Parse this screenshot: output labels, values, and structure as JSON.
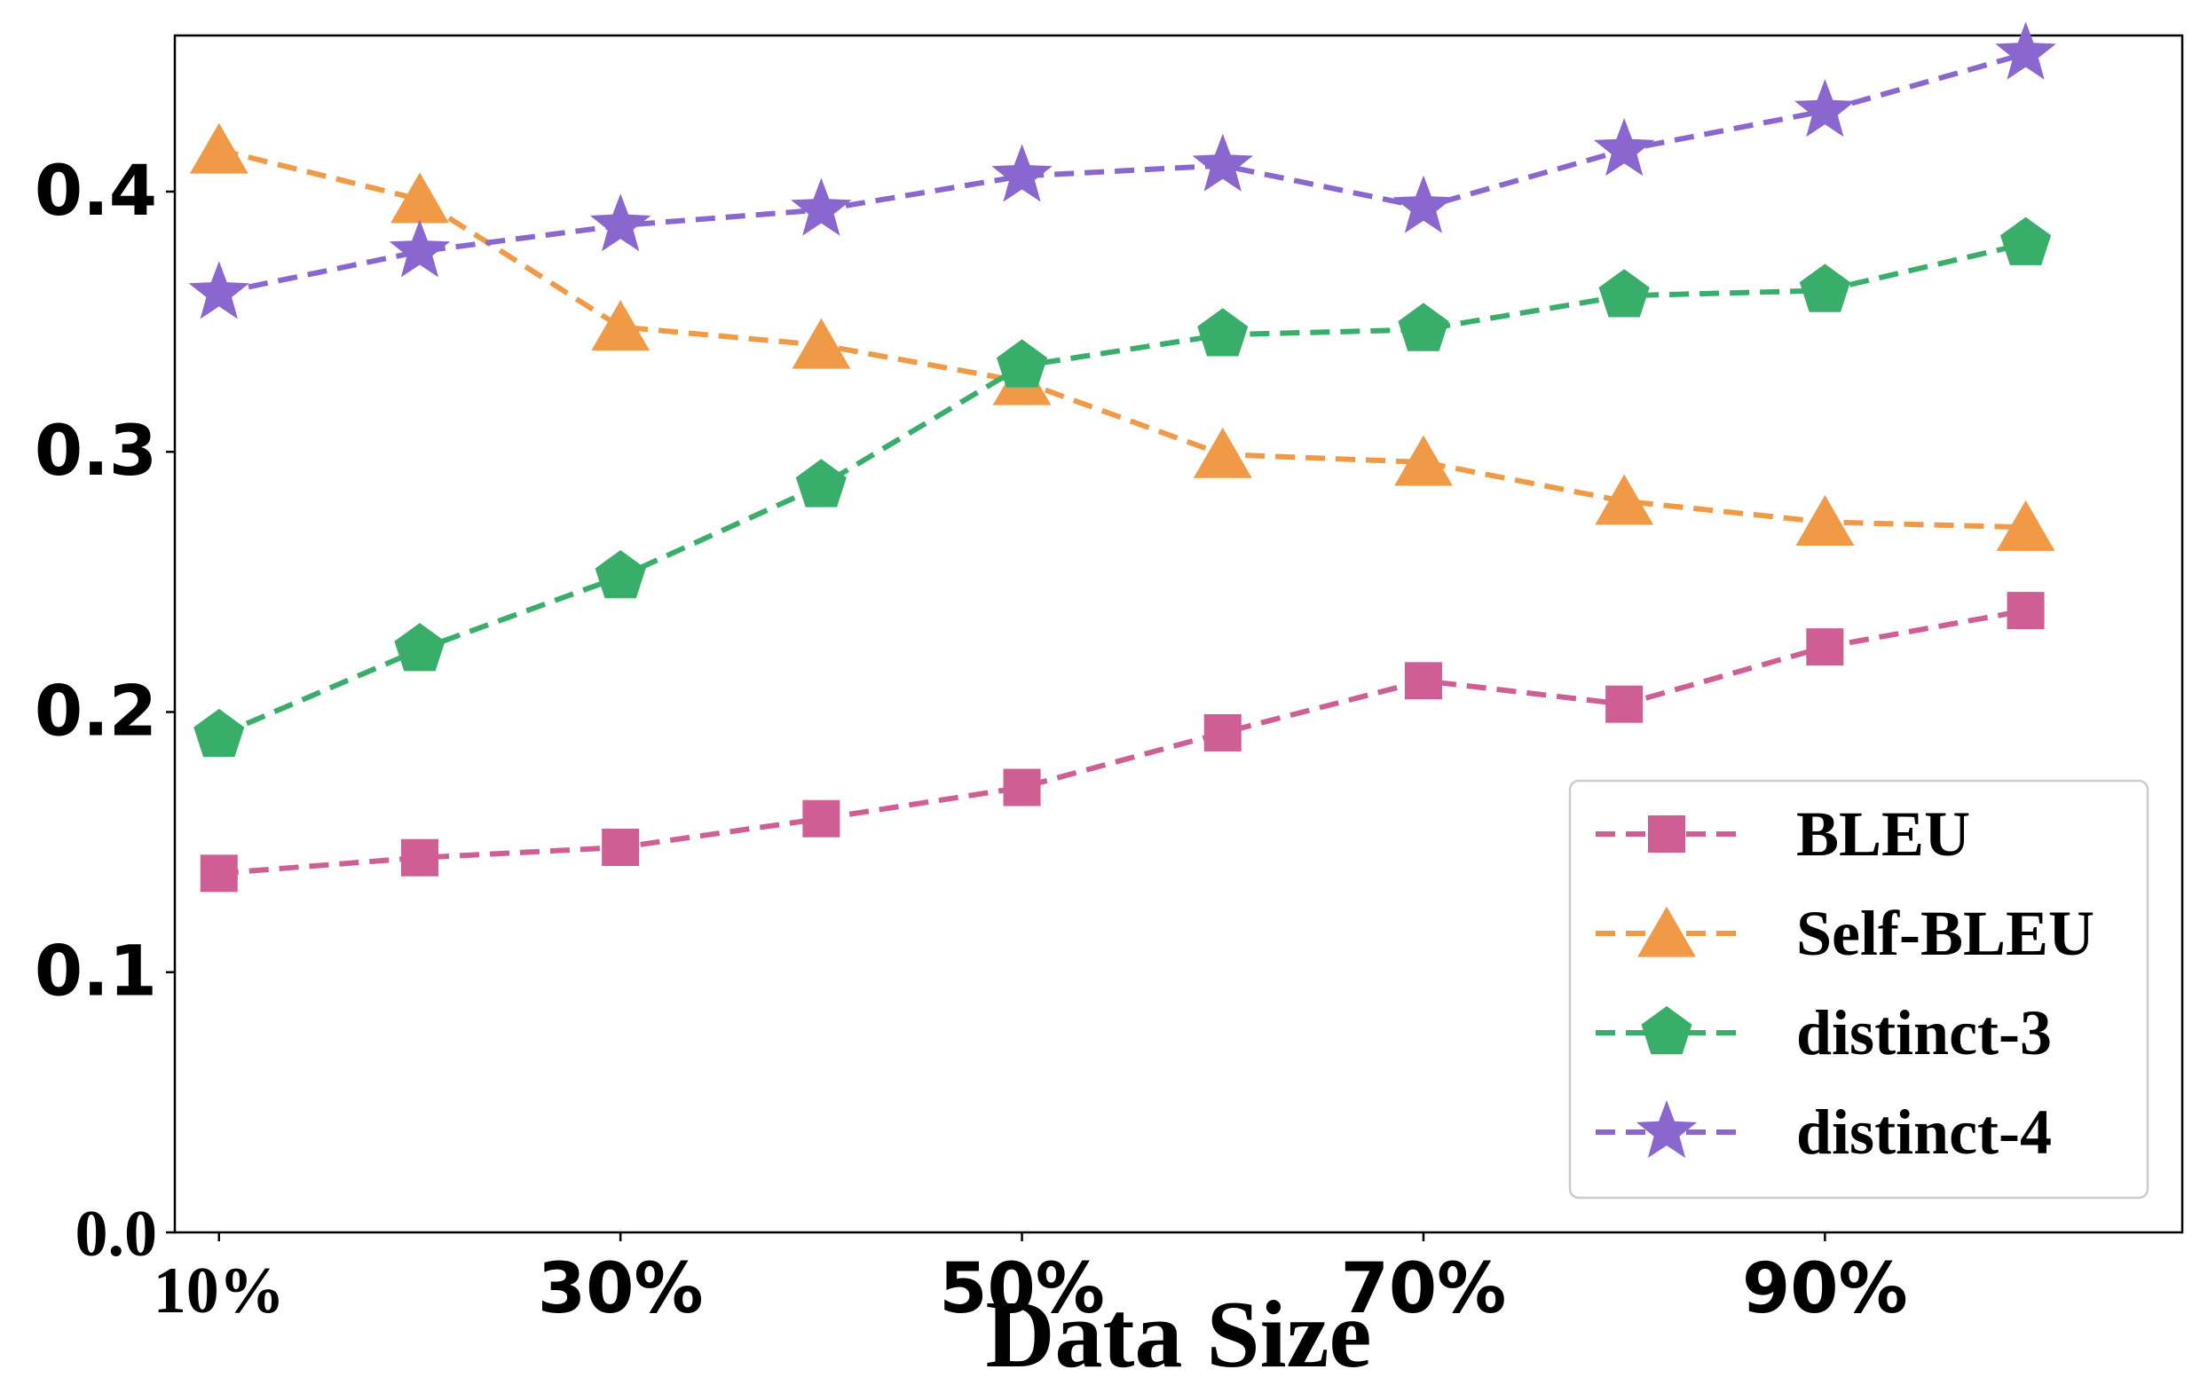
{
  "chart_data": {
    "type": "line",
    "title": "",
    "xlabel": "Data Size",
    "ylabel": "",
    "x": [
      10,
      20,
      30,
      40,
      50,
      60,
      70,
      80,
      90,
      100
    ],
    "xlim": [
      7.8,
      107.8
    ],
    "ylim": [
      0.0,
      0.46
    ],
    "x_ticks": [
      {
        "value": 10,
        "label": "10%",
        "font": "serif"
      },
      {
        "value": 30,
        "label": "30%",
        "font": "sans"
      },
      {
        "value": 50,
        "label": "50%",
        "font": "sans"
      },
      {
        "value": 70,
        "label": "70%",
        "font": "sans"
      },
      {
        "value": 90,
        "label": "90%",
        "font": "sans"
      }
    ],
    "y_ticks": [
      {
        "value": 0.0,
        "label": "0.0",
        "font": "serif"
      },
      {
        "value": 0.1,
        "label": "0.1",
        "font": "sans"
      },
      {
        "value": 0.2,
        "label": "0.2",
        "font": "sans"
      },
      {
        "value": 0.3,
        "label": "0.3",
        "font": "sans"
      },
      {
        "value": 0.4,
        "label": "0.4",
        "font": "sans"
      }
    ],
    "legend_position": "lower-right",
    "series": [
      {
        "name": "BLEU",
        "marker": "square",
        "color": "#CF5E95",
        "values": [
          0.138,
          0.144,
          0.148,
          0.159,
          0.171,
          0.192,
          0.212,
          0.203,
          0.225,
          0.239
        ]
      },
      {
        "name": "Self-BLEU",
        "marker": "triangle",
        "color": "#F09A48",
        "values": [
          0.416,
          0.397,
          0.348,
          0.341,
          0.327,
          0.299,
          0.296,
          0.281,
          0.273,
          0.271
        ]
      },
      {
        "name": "distinct-3",
        "marker": "pentagon",
        "color": "#39AE6A",
        "values": [
          0.191,
          0.224,
          0.252,
          0.287,
          0.333,
          0.345,
          0.347,
          0.36,
          0.362,
          0.38
        ]
      },
      {
        "name": "distinct-4",
        "marker": "star",
        "color": "#8A67CF",
        "values": [
          0.361,
          0.377,
          0.387,
          0.393,
          0.406,
          0.41,
          0.394,
          0.416,
          0.431,
          0.453
        ]
      }
    ]
  }
}
